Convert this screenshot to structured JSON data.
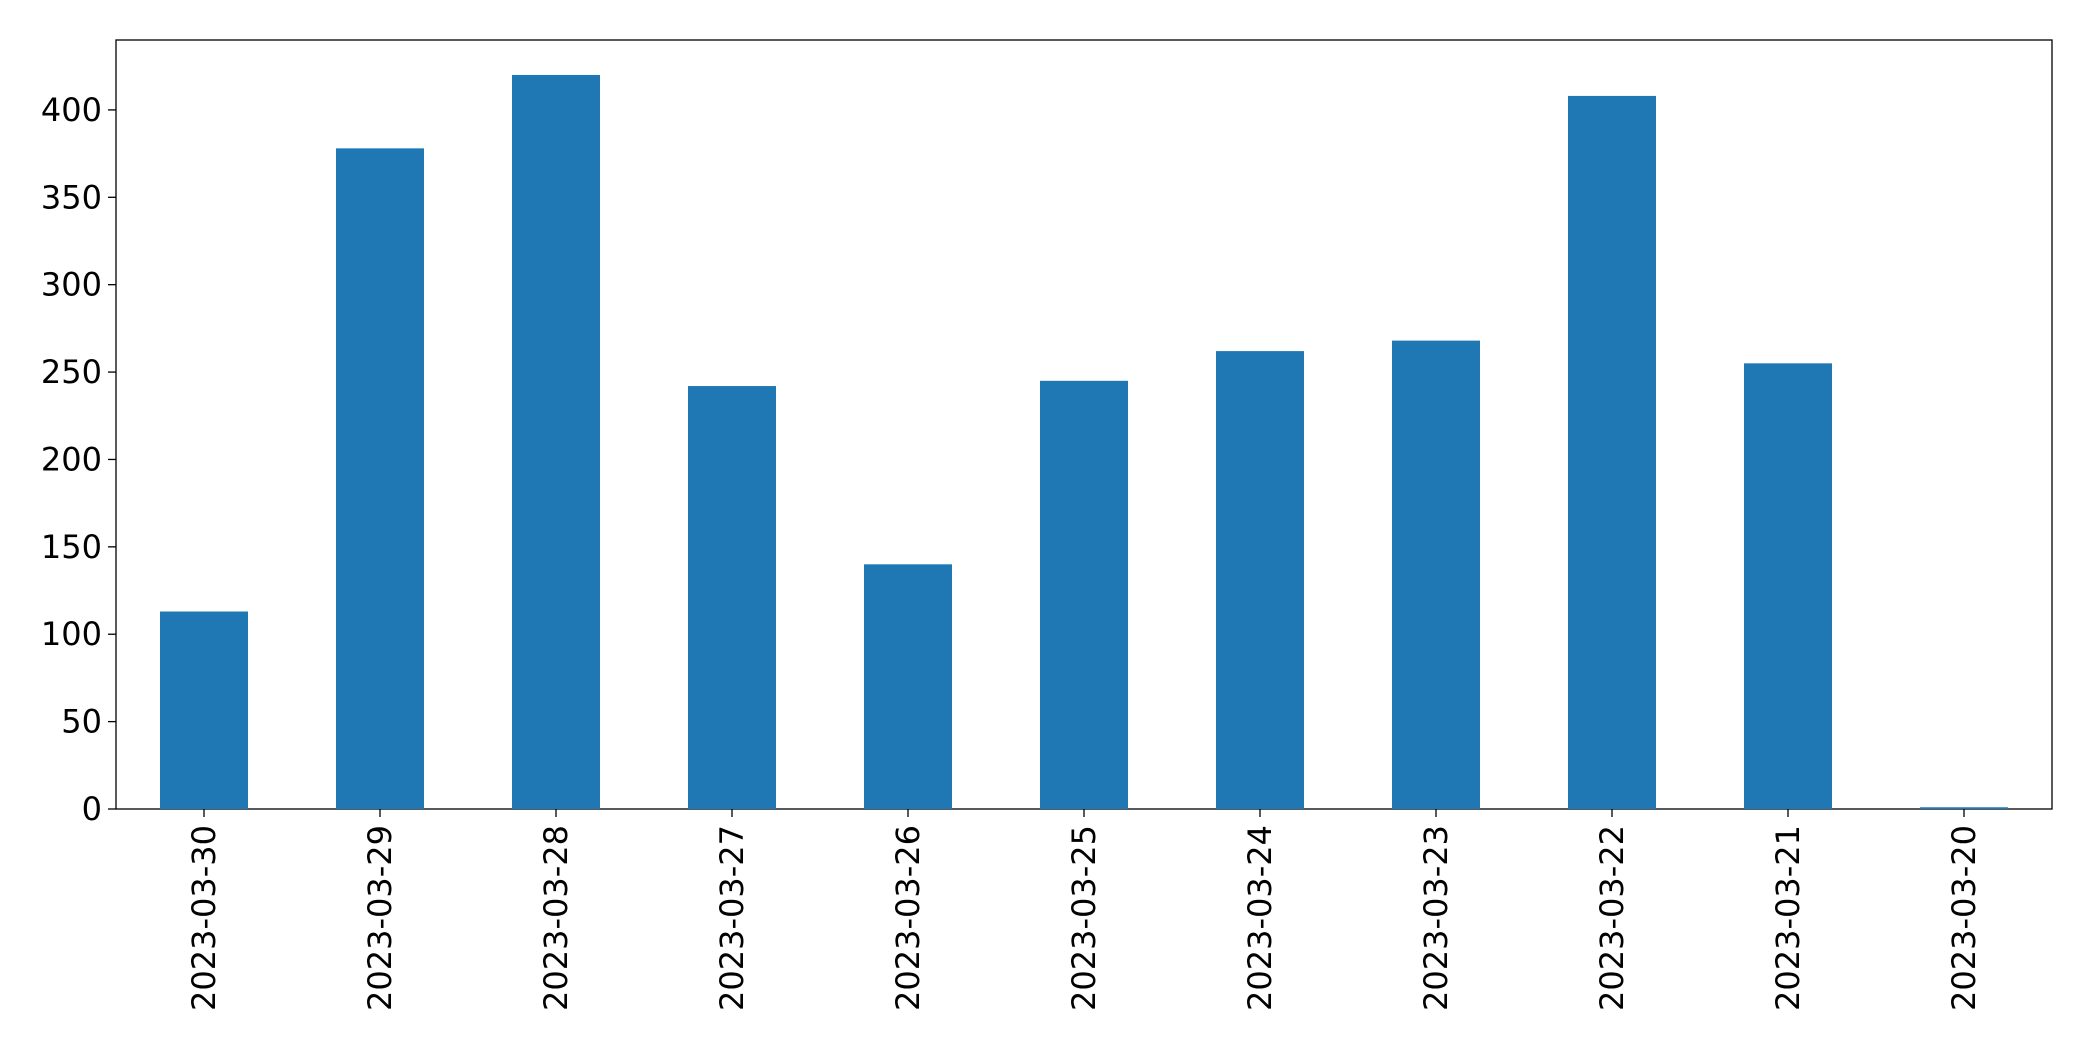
{
  "chart_data": {
    "type": "bar",
    "categories": [
      "2023-03-30",
      "2023-03-29",
      "2023-03-28",
      "2023-03-27",
      "2023-03-26",
      "2023-03-25",
      "2023-03-24",
      "2023-03-23",
      "2023-03-22",
      "2023-03-21",
      "2023-03-20"
    ],
    "values": [
      113,
      378,
      420,
      242,
      140,
      245,
      262,
      268,
      408,
      255,
      1
    ],
    "color": "#1f77b4",
    "ylim": [
      0,
      440
    ],
    "yticks": [
      0,
      50,
      100,
      150,
      200,
      250,
      300,
      350,
      400
    ],
    "grid": false
  }
}
